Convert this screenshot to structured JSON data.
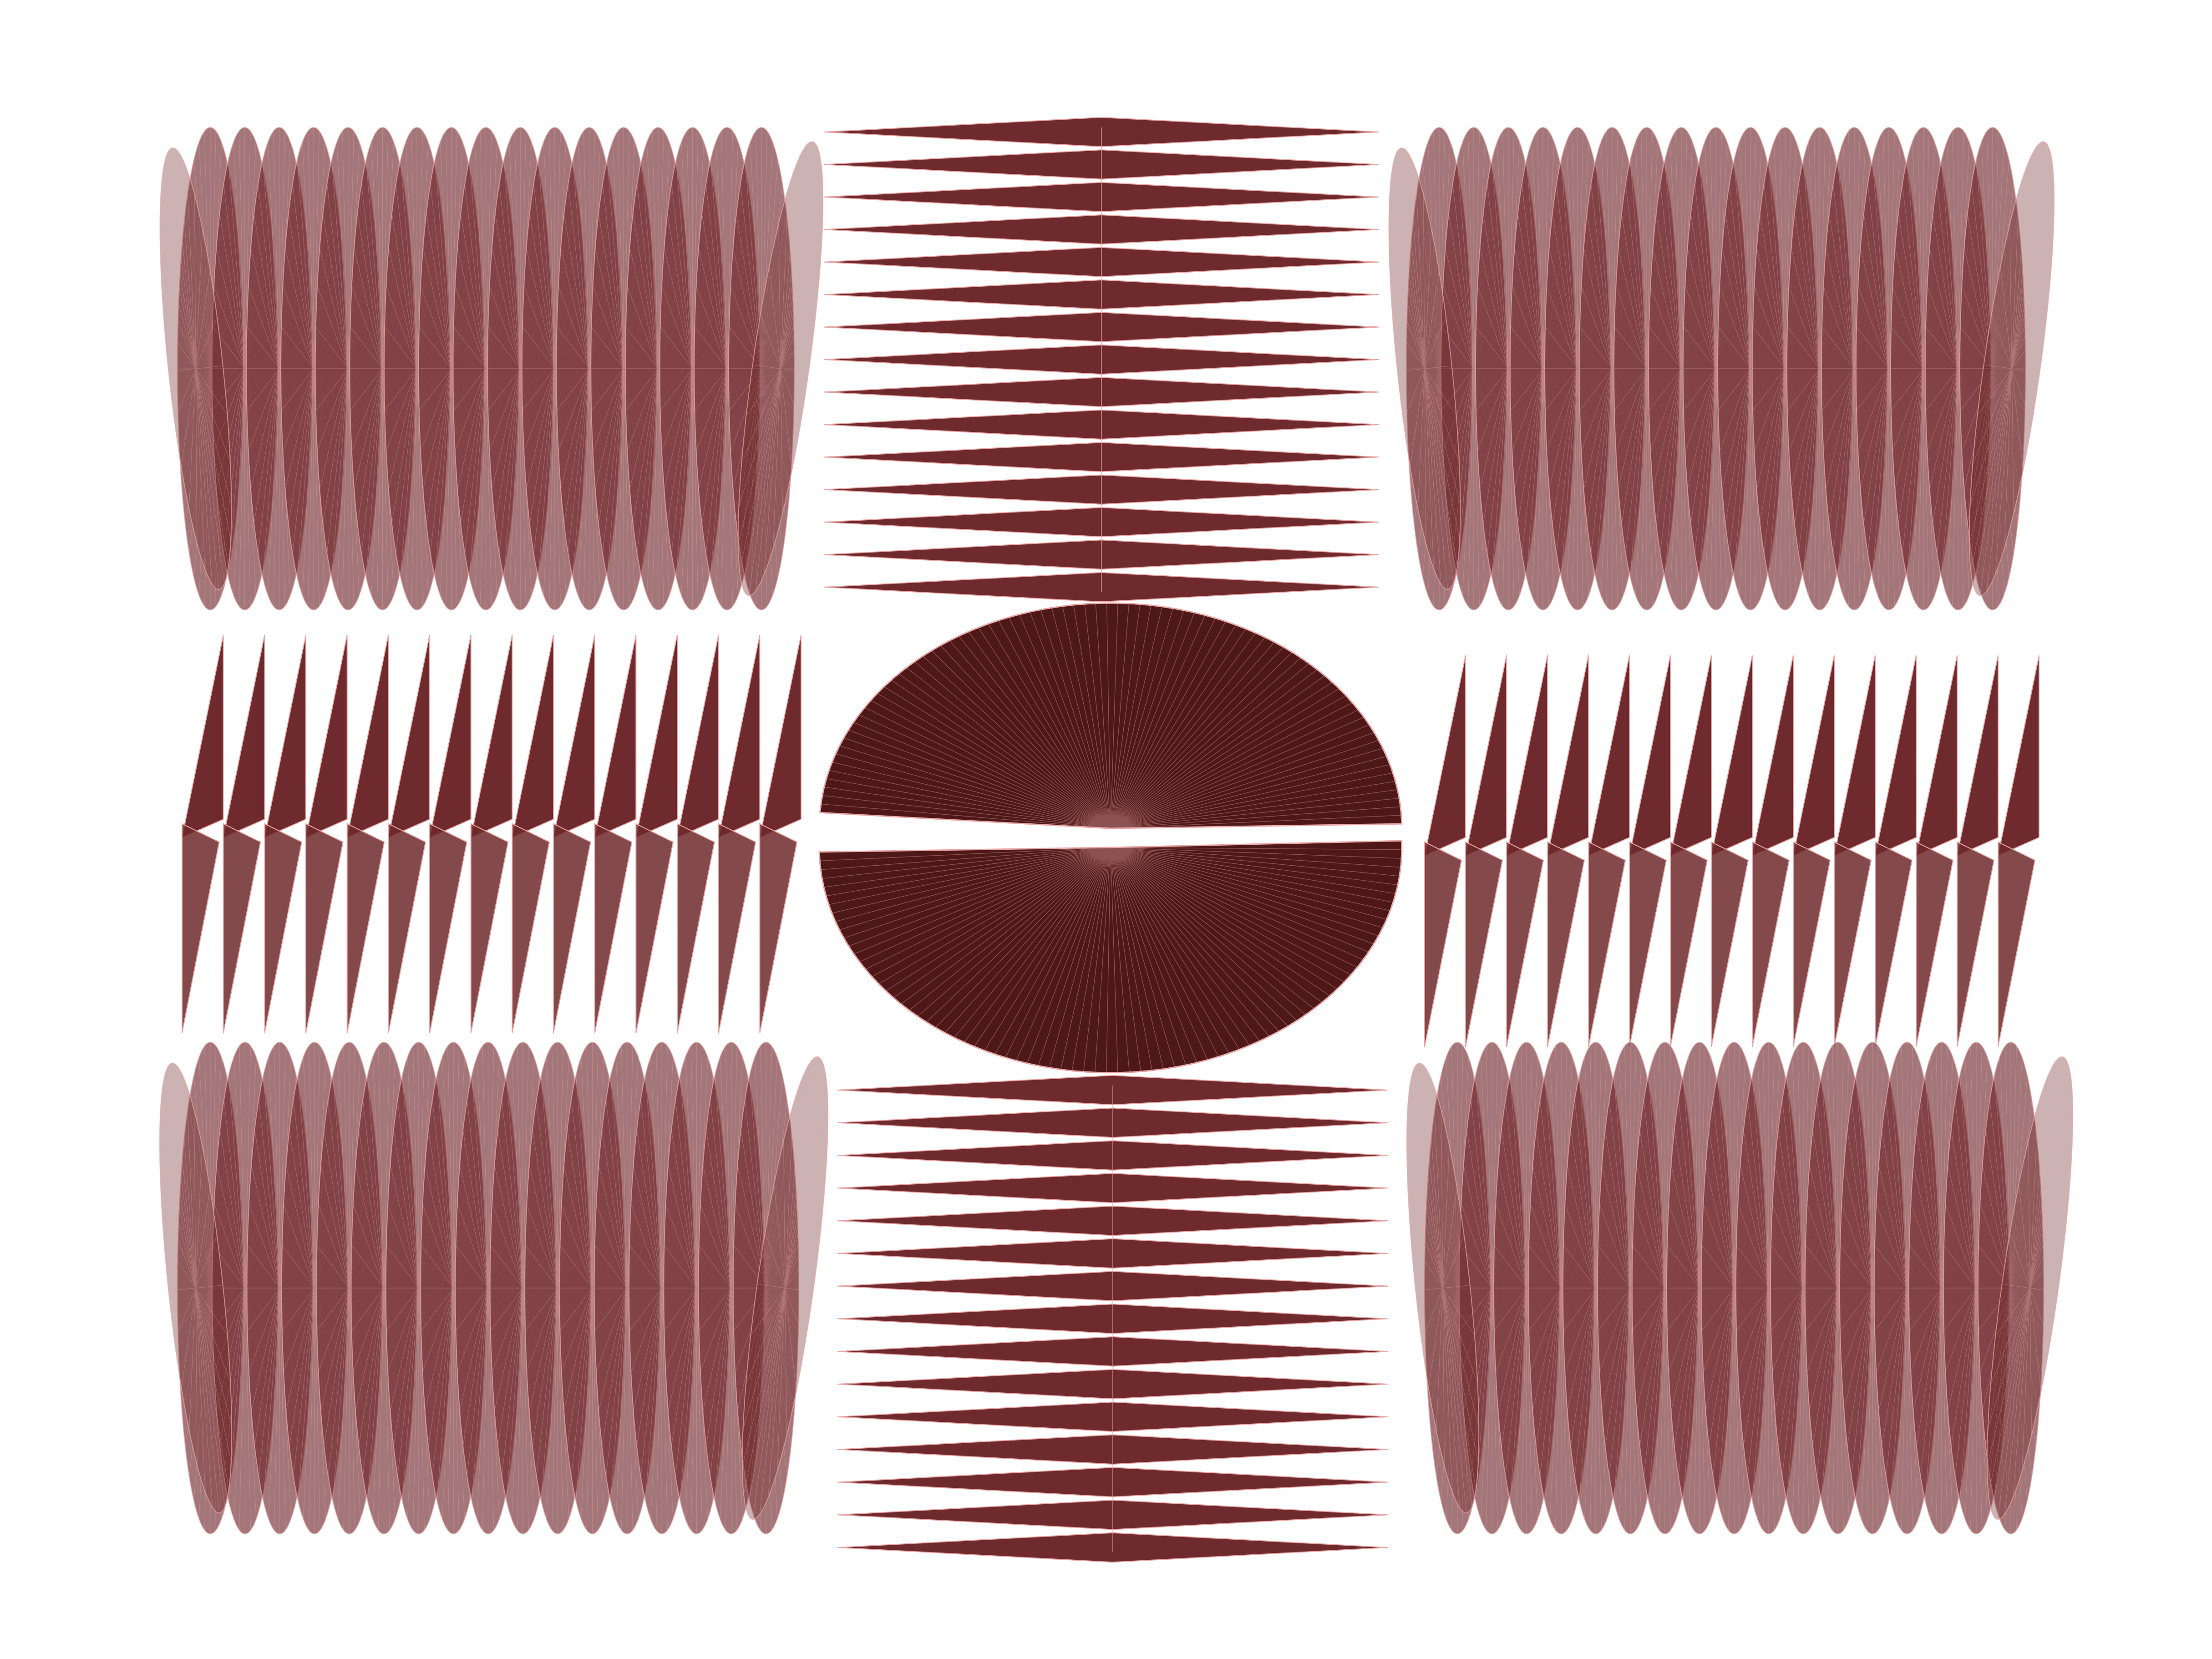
{
  "artwork": {
    "style": "radial pie-slice pattern grid",
    "grid": "3x3",
    "colors": {
      "fill_dark": "#4f1818",
      "fill_mid": "#6e2a2c",
      "fill_translucent": "#6b2226",
      "stroke_light": "#e9a7a7",
      "background": "#ffffff"
    },
    "panels": [
      {
        "id": "top-left",
        "motif": "stacked-ellipse-fans",
        "count": 17
      },
      {
        "id": "top-center",
        "motif": "horizontal-spike-fans",
        "count": 15
      },
      {
        "id": "top-right",
        "motif": "stacked-ellipse-fans",
        "count": 17
      },
      {
        "id": "middle-left",
        "motif": "vertical-spike-fans",
        "count": 15
      },
      {
        "id": "center",
        "motif": "split-ellipse-fan",
        "count": 1
      },
      {
        "id": "middle-right",
        "motif": "vertical-spike-fans",
        "count": 15
      },
      {
        "id": "bottom-left",
        "motif": "stacked-ellipse-fans",
        "count": 17
      },
      {
        "id": "bottom-center",
        "motif": "horizontal-spike-fans",
        "count": 15
      },
      {
        "id": "bottom-right",
        "motif": "stacked-ellipse-fans",
        "count": 17
      }
    ]
  }
}
